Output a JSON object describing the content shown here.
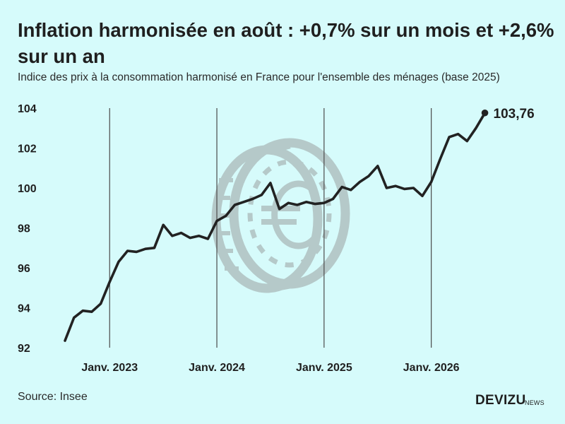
{
  "title": "Inflation harmonisée en août : +0,7% sur un mois et +2,6% sur un an",
  "subtitle": "Indice des prix à la consommation harmonisé en France pour l'ensemble des ménages (base 2025)",
  "source": "Source: Insee",
  "brand": {
    "name": "DEVIZU",
    "suffix": "NEWS"
  },
  "watermark_icon": "euro-coin-icon",
  "colors": {
    "background": "#d6fbfb",
    "line": "#222222",
    "watermark": "#b5c9c9",
    "vline": "#4a4a4a"
  },
  "chart_data": {
    "type": "line",
    "ylim": [
      92,
      104
    ],
    "yticks": [
      92,
      94,
      96,
      98,
      100,
      102,
      104
    ],
    "ytick_labels": [
      "92",
      "94",
      "96",
      "98",
      "100",
      "102",
      "104"
    ],
    "x_start_month": "2022-08",
    "xticks": [
      {
        "date": "2023-01",
        "label": "Janv. 2023"
      },
      {
        "date": "2024-01",
        "label": "Janv. 2024"
      },
      {
        "date": "2025-01",
        "label": "Janv. 2025"
      },
      {
        "date": "2026-01",
        "label": "Janv. 2026"
      }
    ],
    "series": [
      {
        "values": [
          92.35,
          93.5,
          93.85,
          93.8,
          94.2,
          95.3,
          96.3,
          96.85,
          96.8,
          96.95,
          97.0,
          98.15,
          97.6,
          97.75,
          97.5,
          97.6,
          97.45,
          98.35,
          98.6,
          99.15,
          99.3,
          99.45,
          99.65,
          100.25,
          98.95,
          99.25,
          99.15,
          99.3,
          99.2,
          99.25,
          99.45,
          100.05,
          99.9,
          100.3,
          100.6,
          101.1,
          100.0,
          100.1,
          99.95,
          100.0,
          99.6,
          100.3,
          101.45,
          102.55,
          102.7,
          102.35,
          103.0,
          103.76
        ]
      }
    ],
    "end_label": "103,76"
  }
}
